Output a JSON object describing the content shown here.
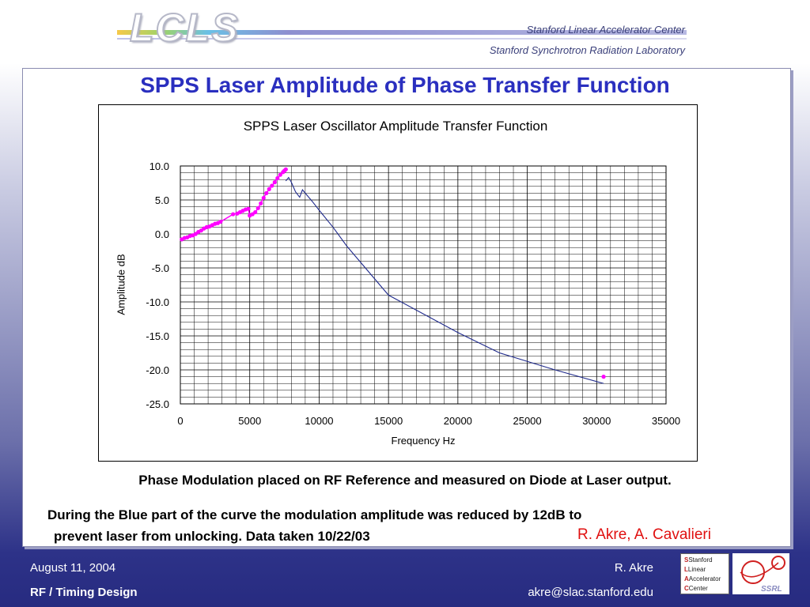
{
  "header": {
    "logo_text": "LCLS",
    "line1": "Stanford Linear Accelerator Center",
    "line2": "Stanford Synchrotron Radiation Laboratory"
  },
  "slide_title": "SPPS Laser Amplitude of Phase Transfer Function",
  "captions": {
    "line1": "Phase Modulation placed on RF Reference and measured on Diode at Laser output.",
    "line2": "During the Blue part of the curve the modulation amplitude was reduced by 12dB to",
    "line3": "prevent laser from unlocking.  Data taken 10/22/03",
    "authors": "R. Akre, A. Cavalieri"
  },
  "footer": {
    "date": "August 11, 2004",
    "design": "RF / Timing Design",
    "name": "R. Akre",
    "email": "akre@slac.stanford.edu",
    "slac_logo_lines": [
      "Stanford",
      "Linear",
      "Accelerator",
      "Center"
    ],
    "ssrl_logo_text": "SSRL"
  },
  "chart_data": {
    "type": "line",
    "title": "SPPS Laser Oscillator Amplitude Transfer Function",
    "xlabel": "Frequency Hz",
    "ylabel": "Amplitude dB",
    "xlim": [
      0,
      35000
    ],
    "ylim": [
      -25,
      10
    ],
    "x_ticks": [
      "0",
      "5000",
      "10000",
      "15000",
      "20000",
      "25000",
      "30000",
      "35000"
    ],
    "y_ticks": [
      "10.0",
      "5.0",
      "0.0",
      "-5.0",
      "-10.0",
      "-15.0",
      "-20.0",
      "-25.0"
    ],
    "grid": true,
    "colors": {
      "magenta": "#ff00ff",
      "blue": "#1f2a8c"
    },
    "series": [
      {
        "color": "#ff00ff",
        "style": "markers",
        "x": [
          100,
          300,
          500,
          700,
          900,
          1100,
          1300,
          1500,
          1700,
          1900,
          2100,
          2300,
          2500,
          2700,
          2900,
          3800,
          4100,
          4300,
          4500,
          4700,
          4900,
          5000,
          5200,
          5400,
          5600,
          5800,
          6000,
          6200,
          6400,
          6600,
          6800,
          7000,
          7200,
          7400,
          7500,
          7600,
          30500
        ],
        "y": [
          -0.8,
          -0.6,
          -0.5,
          -0.3,
          -0.2,
          0.0,
          0.3,
          0.5,
          0.8,
          1.0,
          1.1,
          1.3,
          1.5,
          1.6,
          1.8,
          2.9,
          3.0,
          3.2,
          3.4,
          3.6,
          3.7,
          2.7,
          2.9,
          3.2,
          3.8,
          4.5,
          5.3,
          6.0,
          6.6,
          7.1,
          7.6,
          8.2,
          8.7,
          9.1,
          9.3,
          9.5,
          -21.0
        ]
      },
      {
        "color": "#1f2a8c",
        "style": "line",
        "x": [
          7600,
          7800,
          8000,
          8300,
          8600,
          8800,
          9000,
          9500,
          10000,
          11000,
          12000,
          15000,
          20000,
          23000,
          27000,
          30500
        ],
        "y": [
          7.8,
          8.3,
          7.6,
          6.2,
          5.4,
          6.5,
          6.0,
          4.8,
          3.5,
          1.0,
          -1.8,
          -9.0,
          -14.5,
          -17.5,
          -20.0,
          -22.0
        ]
      }
    ]
  }
}
